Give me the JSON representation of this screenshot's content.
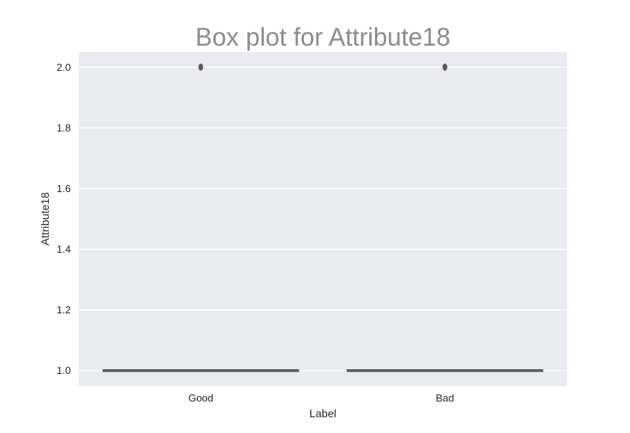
{
  "chart_data": {
    "type": "box",
    "title": "Box plot for Attribute18",
    "xlabel": "Label",
    "ylabel": "Attribute18",
    "categories": [
      "Good",
      "Bad"
    ],
    "ylim": [
      0.95,
      2.05
    ],
    "yticks": [
      1.0,
      1.2,
      1.4,
      1.6,
      1.8,
      2.0
    ],
    "ytick_labels": [
      "1.0",
      "1.2",
      "1.4",
      "1.6",
      "1.8",
      "2.0"
    ],
    "grid": true,
    "boxes": [
      {
        "category": "Good",
        "min": 1.0,
        "q1": 1.0,
        "median": 1.0,
        "q3": 1.0,
        "max": 1.0,
        "outliers": [
          2.0
        ]
      },
      {
        "category": "Bad",
        "min": 1.0,
        "q1": 1.0,
        "median": 1.0,
        "q3": 1.0,
        "max": 1.0,
        "outliers": [
          2.0
        ]
      }
    ],
    "colors": {
      "background": "#eaeaf2",
      "grid": "#ffffff",
      "box": "#5a5a5a",
      "title": "#8c8c8c"
    }
  }
}
